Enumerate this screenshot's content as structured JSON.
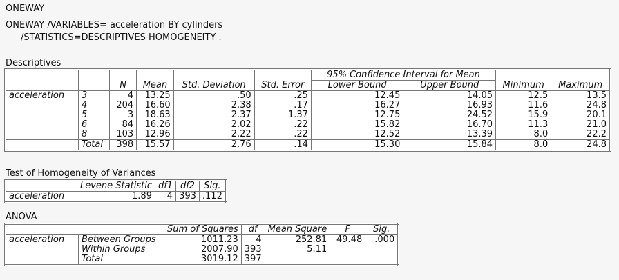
{
  "syntax": {
    "line1": "ONEWAY",
    "line2": "ONEWAY /VARIABLES= acceleration BY cylinders",
    "line3": "/STATISTICS=DESCRIPTIVES HOMOGENEITY ."
  },
  "descriptives": {
    "title": "Descriptives",
    "ci_header": "95% Confidence Interval for Mean",
    "headers": [
      "N",
      "Mean",
      "Std. Deviation",
      "Std. Error",
      "Lower Bound",
      "Upper Bound",
      "Minimum",
      "Maximum"
    ],
    "variable": "acceleration",
    "groups": [
      "3",
      "4",
      "5",
      "6",
      "8",
      "Total"
    ],
    "N": [
      "4",
      "204",
      "3",
      "84",
      "103",
      "398"
    ],
    "Mean": [
      "13.25",
      "16.60",
      "18.63",
      "16.26",
      "12.96",
      "15.57"
    ],
    "StdDev": [
      ".50",
      "2.38",
      "2.37",
      "2.02",
      "2.22",
      "2.76"
    ],
    "StdErr": [
      ".25",
      ".17",
      "1.37",
      ".22",
      ".22",
      ".14"
    ],
    "Lower": [
      "12.45",
      "16.27",
      "12.75",
      "15.82",
      "12.52",
      "15.30"
    ],
    "Upper": [
      "14.05",
      "16.93",
      "24.52",
      "16.70",
      "13.39",
      "15.84"
    ],
    "Min": [
      "12.5",
      "11.6",
      "15.9",
      "11.3",
      "8.0",
      "8.0"
    ],
    "Max": [
      "13.5",
      "24.8",
      "20.1",
      "21.0",
      "22.2",
      "24.8"
    ]
  },
  "levene": {
    "title": "Test of Homogeneity of Variances",
    "headers": [
      "Levene Statistic",
      "df1",
      "df2",
      "Sig."
    ],
    "variable": "acceleration",
    "values": [
      "1.89",
      "4",
      "393",
      ".112"
    ]
  },
  "anova": {
    "title": "ANOVA",
    "headers": [
      "Sum of Squares",
      "df",
      "Mean Square",
      "F",
      "Sig."
    ],
    "variable": "acceleration",
    "rows": [
      "Between Groups",
      "Within Groups",
      "Total"
    ],
    "SS": [
      "1011.23",
      "2007.90",
      "3019.12"
    ],
    "df": [
      "4",
      "393",
      "397"
    ],
    "MS": [
      "252.81",
      "5.11",
      ""
    ],
    "F": "49.48",
    "Sig": ".000"
  }
}
